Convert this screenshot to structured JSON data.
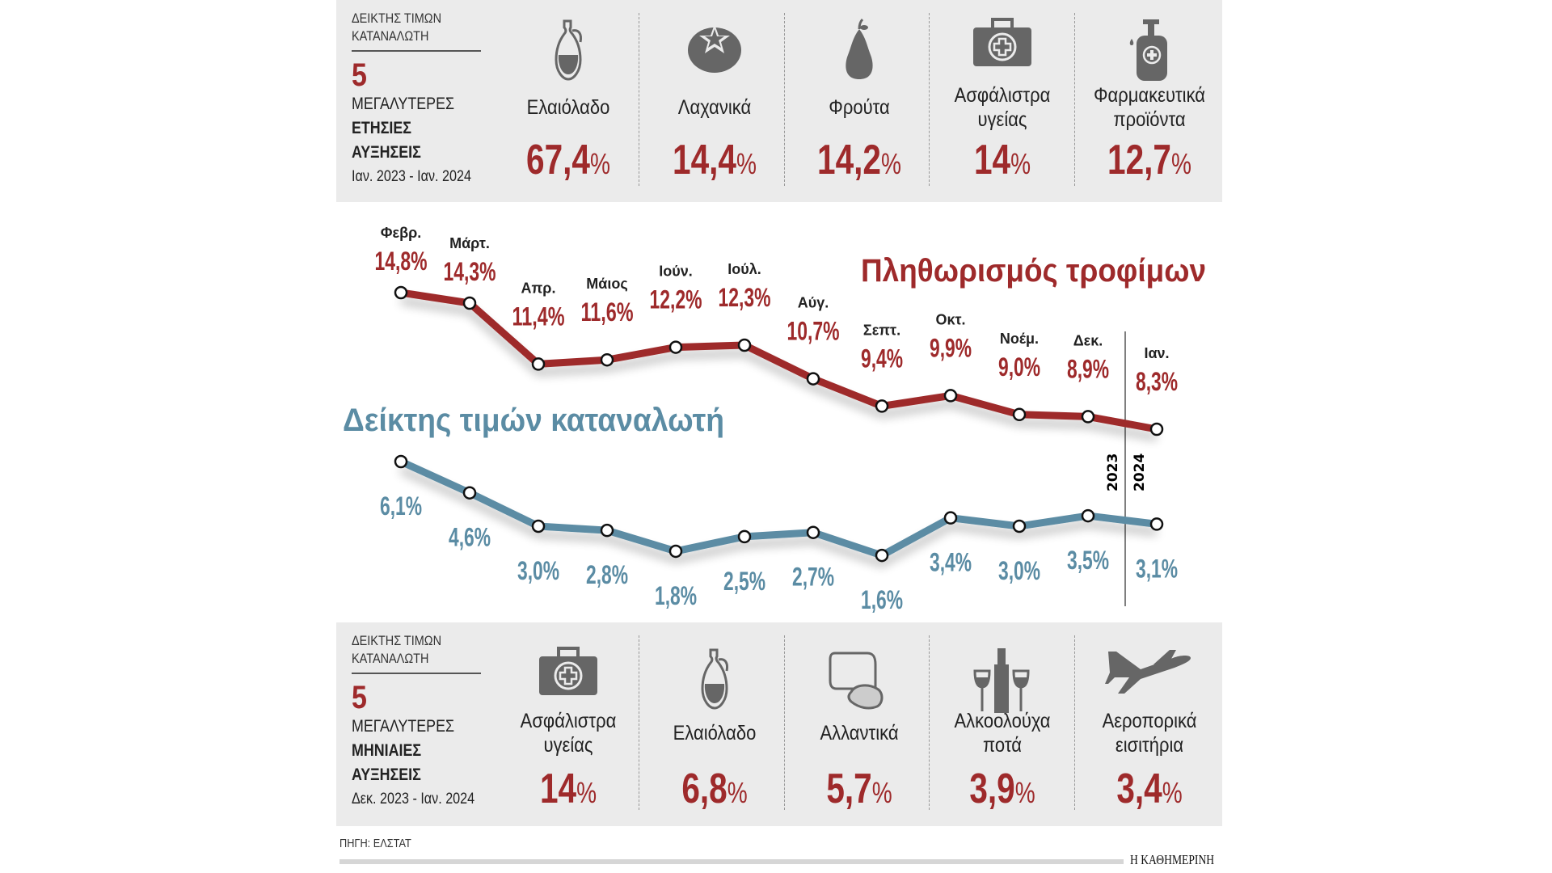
{
  "top_panel": {
    "heading_line1": "ΔΕΙΚΤΗΣ ΤΙΜΩΝ",
    "heading_line2": "ΚΑΤΑΝΑΛΩΤΗ",
    "count": "5",
    "line1": "ΜΕΓΑΛΥΤΕΡΕΣ",
    "line2": "ΕΤΗΣΙΕΣ",
    "line3": "ΑΥΞΗΣΕΙΣ",
    "period": "Ιαν. 2023 - Ιαν. 2024",
    "items": [
      {
        "label1": "Ελαιόλαδο",
        "label2": "",
        "value": "67,4",
        "icon": "olive-oil-jug-icon"
      },
      {
        "label1": "Λαχανικά",
        "label2": "",
        "value": "14,4",
        "icon": "tomato-icon"
      },
      {
        "label1": "Φρούτα",
        "label2": "",
        "value": "14,2",
        "icon": "pear-icon"
      },
      {
        "label1": "Ασφάλιστρα",
        "label2": "υγείας",
        "value": "14",
        "icon": "medical-kit-icon"
      },
      {
        "label1": "Φαρμακευτικά",
        "label2": "προϊόντα",
        "value": "12,7",
        "icon": "pharma-bottle-icon"
      }
    ]
  },
  "bottom_panel": {
    "heading_line1": "ΔΕΙΚΤΗΣ ΤΙΜΩΝ",
    "heading_line2": "ΚΑΤΑΝΑΛΩΤΗ",
    "count": "5",
    "line1": "ΜΕΓΑΛΥΤΕΡΕΣ",
    "line2": "ΜΗΝΙΑΙΕΣ",
    "line3": "ΑΥΞΗΣΕΙΣ",
    "period": "Δεκ. 2023 - Ιαν. 2024",
    "items": [
      {
        "label1": "Ασφάλιστρα",
        "label2": "υγείας",
        "value": "14",
        "icon": "medical-kit-icon"
      },
      {
        "label1": "Ελαιόλαδο",
        "label2": "",
        "value": "6,8",
        "icon": "olive-oil-jug-icon"
      },
      {
        "label1": "Αλλαντικά",
        "label2": "",
        "value": "5,7",
        "icon": "cold-cuts-icon"
      },
      {
        "label1": "Αλκοολούχα",
        "label2": "ποτά",
        "value": "3,9",
        "icon": "wine-bottle-glasses-icon"
      },
      {
        "label1": "Αεροπορικά",
        "label2": "εισιτήρια",
        "value": "3,4",
        "icon": "airplane-icon"
      }
    ]
  },
  "percent_sign": "%",
  "chart_data": {
    "type": "line",
    "categories": [
      "Φεβρ.",
      "Μάρτ.",
      "Απρ.",
      "Μάιος",
      "Ιούν.",
      "Ιούλ.",
      "Αύγ.",
      "Σεπτ.",
      "Οκτ.",
      "Νοέμ.",
      "Δεκ.",
      "Ιαν."
    ],
    "series": [
      {
        "name": "Πληθωρισμός τροφίμων",
        "color": "#9e2a2b",
        "values": [
          14.8,
          14.3,
          11.4,
          11.6,
          12.2,
          12.3,
          10.7,
          9.4,
          9.9,
          9.0,
          8.9,
          8.3
        ],
        "labels": [
          "14,8%",
          "14,3%",
          "11,4%",
          "11,6%",
          "12,2%",
          "12,3%",
          "10,7%",
          "9,4%",
          "9,9%",
          "9,0%",
          "8,9%",
          "8,3%"
        ]
      },
      {
        "name": "Δείκτης τιμών καταναλωτή",
        "color": "#5b8ca4",
        "values": [
          6.1,
          4.6,
          3.0,
          2.8,
          1.8,
          2.5,
          2.7,
          1.6,
          3.4,
          3.0,
          3.5,
          3.1
        ],
        "labels": [
          "6,1%",
          "4,6%",
          "3,0%",
          "2,8%",
          "1,8%",
          "2,5%",
          "2,7%",
          "1,6%",
          "3,4%",
          "3,0%",
          "3,5%",
          "3,1%"
        ]
      }
    ],
    "year_divider": {
      "before": "2023",
      "after": "2024"
    }
  },
  "footer": {
    "source": "ΠΗΓΗ: ΕΛΣΤΑΤ",
    "brand": "Η ΚΑΘΗΜΕΡΙΝΗ"
  }
}
